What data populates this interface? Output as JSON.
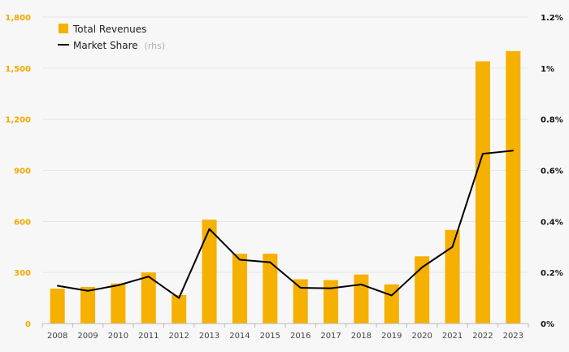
{
  "chart_data": {
    "type": "bar",
    "categories": [
      "2008",
      "2009",
      "2010",
      "2011",
      "2012",
      "2013",
      "2014",
      "2015",
      "2016",
      "2017",
      "2018",
      "2019",
      "2020",
      "2021",
      "2022",
      "2023"
    ],
    "series": [
      {
        "name": "Total Revenues",
        "type": "bar",
        "axis": "left",
        "color": "#f5b000",
        "values": [
          205,
          215,
          235,
          300,
          168,
          610,
          410,
          410,
          260,
          255,
          288,
          230,
          395,
          550,
          1540,
          1600
        ]
      },
      {
        "name": "Market Share",
        "name_suffix": "(rhs)",
        "type": "line",
        "axis": "right",
        "color": "#000000",
        "values": [
          0.148,
          0.128,
          0.15,
          0.184,
          0.1,
          0.37,
          0.25,
          0.24,
          0.14,
          0.138,
          0.153,
          0.11,
          0.22,
          0.3,
          0.665,
          0.677
        ]
      }
    ],
    "y_left": {
      "ylim": [
        0,
        1800
      ],
      "ticks": [
        0,
        300,
        600,
        900,
        1200,
        1500,
        1800
      ],
      "tick_labels": [
        "0",
        "300",
        "600",
        "900",
        "1,200",
        "1,500",
        "1,800"
      ]
    },
    "y_right": {
      "ylim": [
        0,
        1.2
      ],
      "ticks": [
        0,
        0.2,
        0.4,
        0.6,
        0.8,
        1.0,
        1.2
      ],
      "tick_labels": [
        "0%",
        "0.2%",
        "0.4%",
        "0.6%",
        "0.8%",
        "1%",
        "1.2%"
      ]
    },
    "grid": true,
    "legend": {
      "placement": "top-left"
    },
    "title": "",
    "xlabel": "",
    "ylabel": ""
  }
}
